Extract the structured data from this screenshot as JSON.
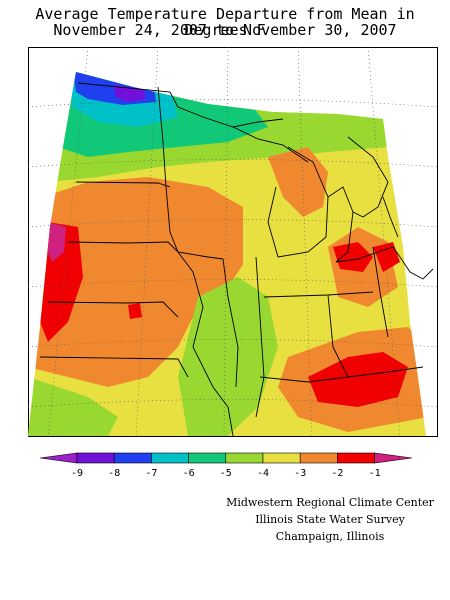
{
  "title": {
    "line1": "Average Temperature Departure from Mean in Degrees F",
    "line2": "November 24, 2007 to November 30, 2007"
  },
  "legend": {
    "ticks": [
      "-9",
      "-8",
      "-7",
      "-6",
      "-5",
      "-4",
      "-3",
      "-2",
      "-1"
    ],
    "colors": [
      "#9a20c8",
      "#7010d8",
      "#2040f0",
      "#00c0c8",
      "#10c878",
      "#98d830",
      "#e8e040",
      "#f08830",
      "#f00000",
      "#d02080"
    ]
  },
  "colors": {
    "bin_minus_8": "#7010d8",
    "bin_minus_7": "#2040f0",
    "bin_minus_6": "#00c0c8",
    "bin_minus_5": "#10c878",
    "bin_minus_4": "#98d830",
    "bin_minus_3": "#e8e040",
    "bin_minus_2": "#f08830",
    "bin_minus_1": "#f00000"
  },
  "credits": {
    "line1": "Midwestern Regional Climate Center",
    "line2": "Illinois State Water Survey",
    "line3": "Champaign, Illinois"
  }
}
